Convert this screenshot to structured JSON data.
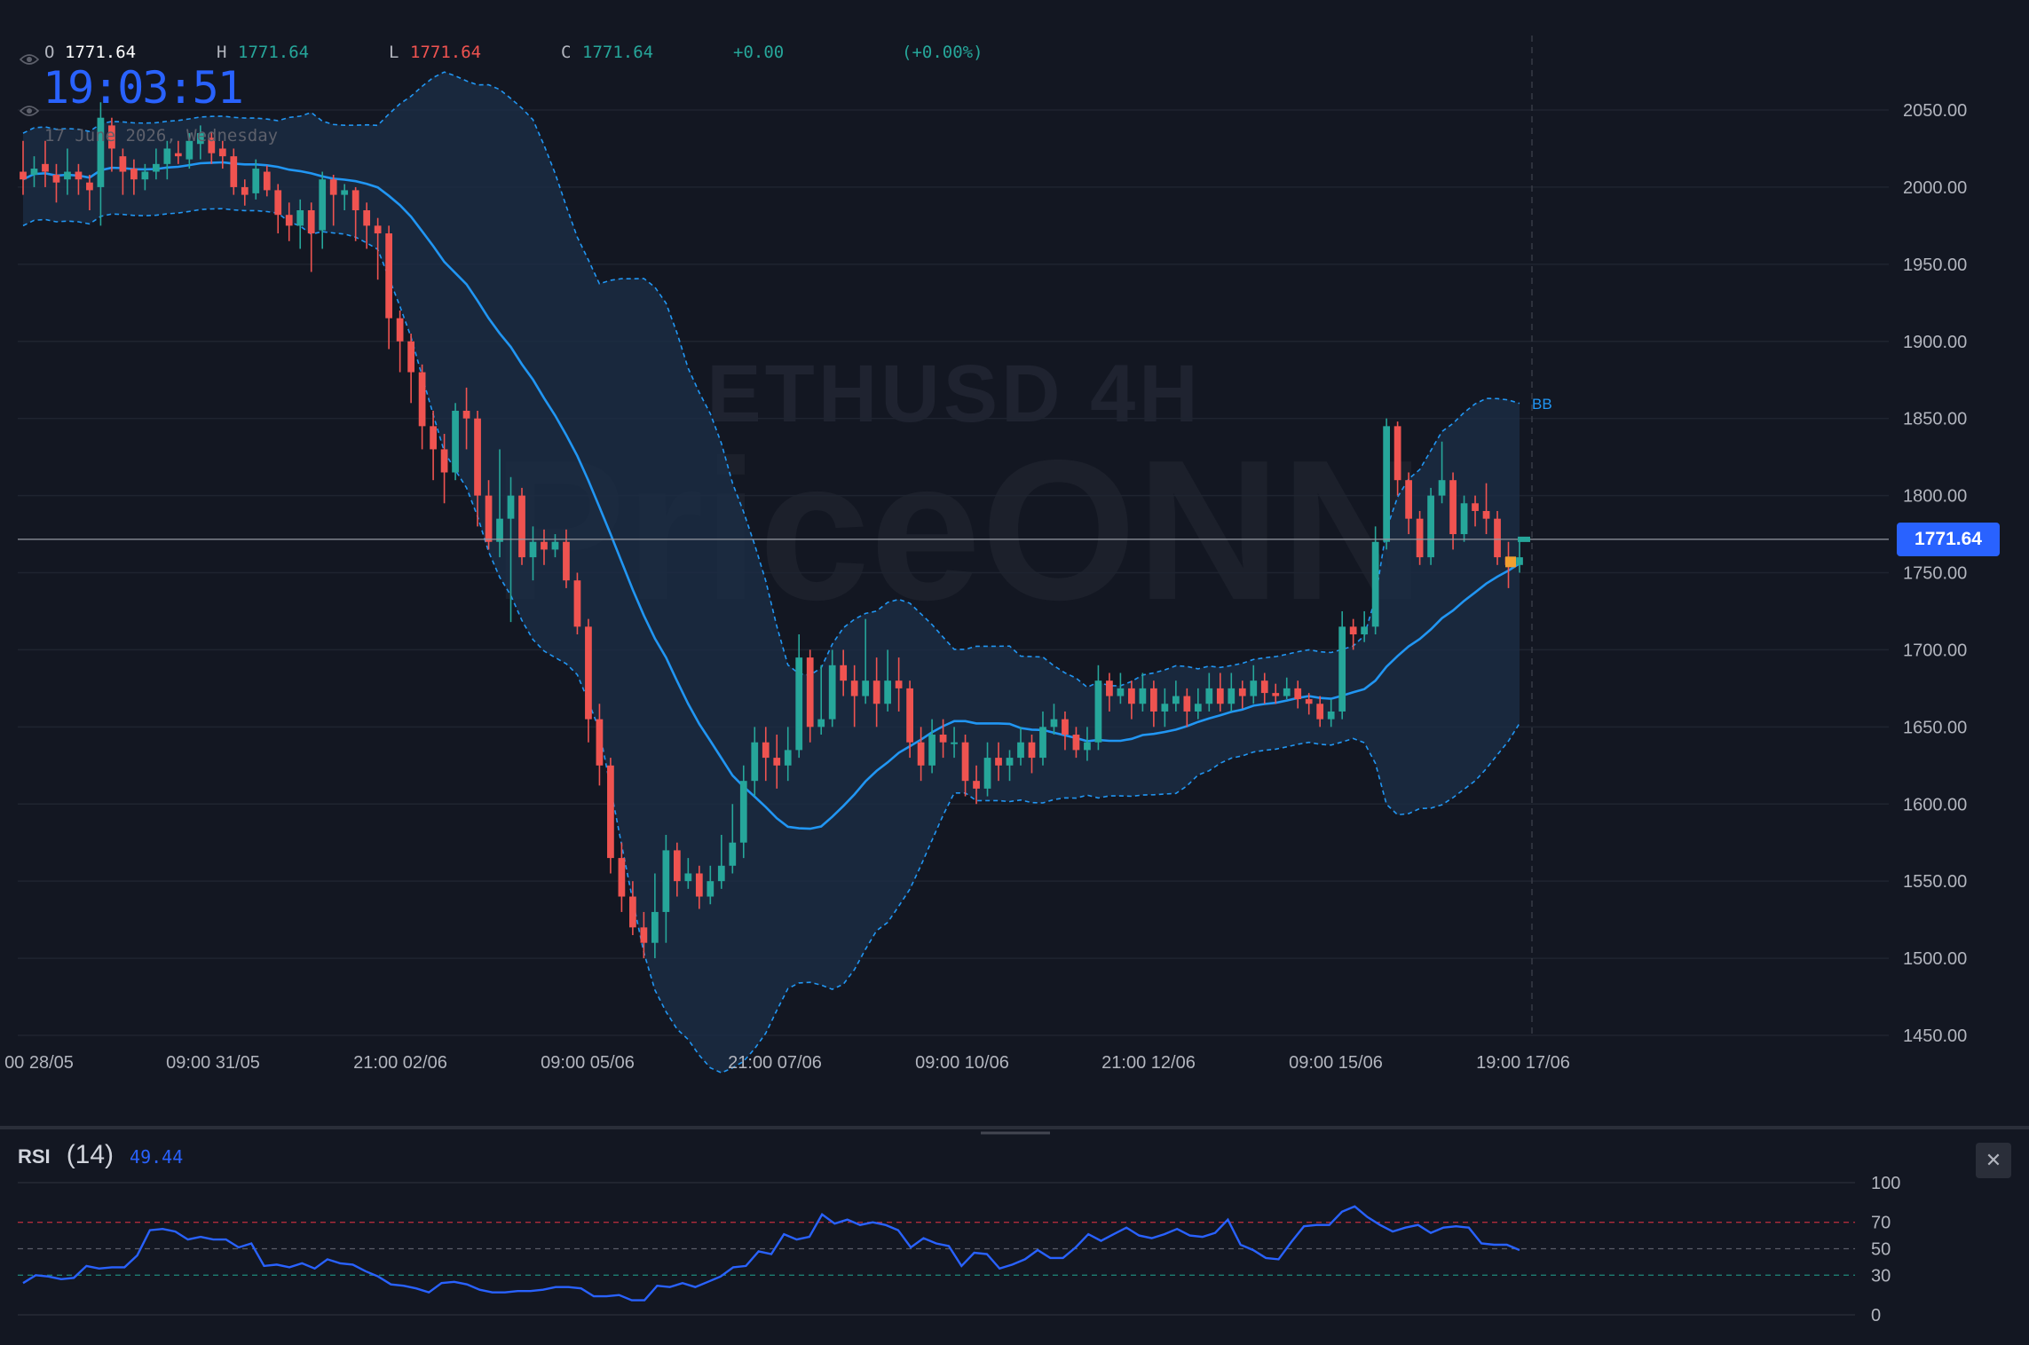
{
  "ohlc": {
    "o_label": "O",
    "o_value": "1771.64",
    "h_label": "H",
    "h_value": "1771.64",
    "l_label": "L",
    "l_value": "1771.64",
    "c_label": "C",
    "c_value": "1771.64",
    "change": "+0.00",
    "change_pct": "(+0.00%)"
  },
  "clock": "19:03:51",
  "date": "17 June 2026, Wednesday",
  "watermark": {
    "line1": "ETHUSD 4H",
    "line2": "PriceONN"
  },
  "price_tag": "1771.64",
  "bb_label": "BB",
  "rsi": {
    "name": "RSI",
    "length": "(14)",
    "value": "49.44",
    "close_icon": "close-icon"
  },
  "colors": {
    "up": "#26a69a",
    "down": "#ef5350",
    "basis": "#2196f3",
    "rsi": "#2962ff",
    "band_fill": "#1b2d45",
    "background": "#131722"
  },
  "chart_data": {
    "type": "candlestick",
    "symbol": "ETHUSD",
    "timeframe": "4H",
    "x_tick_labels": [
      "00 28/05",
      "09:00 31/05",
      "21:00 02/06",
      "09:00 05/06",
      "21:00 07/06",
      "09:00 10/06",
      "21:00 12/06",
      "09:00 15/06",
      "19:00 17/06"
    ],
    "y_tick_labels": [
      "2050.00",
      "2000.00",
      "1950.00",
      "1900.00",
      "1850.00",
      "1800.00",
      "1750.00",
      "1700.00",
      "1650.00",
      "1600.00",
      "1550.00",
      "1500.00",
      "1450.00"
    ],
    "y_range": [
      1450,
      2050
    ],
    "last_price": 1771.64,
    "candles": [
      [
        2010,
        2005,
        2030,
        1995
      ],
      [
        2008,
        2012,
        2020,
        2000
      ],
      [
        2015,
        2010,
        2030,
        2000
      ],
      [
        2008,
        2003,
        2015,
        1990
      ],
      [
        2005,
        2010,
        2025,
        1995
      ],
      [
        2010,
        2005,
        2015,
        1995
      ],
      [
        2003,
        1998,
        2008,
        1985
      ],
      [
        2000,
        2045,
        2055,
        1975
      ],
      [
        2040,
        2025,
        2045,
        2010
      ],
      [
        2020,
        2010,
        2025,
        1995
      ],
      [
        2012,
        2005,
        2018,
        1995
      ],
      [
        2005,
        2010,
        2015,
        1998
      ],
      [
        2010,
        2015,
        2025,
        2005
      ],
      [
        2015,
        2025,
        2030,
        2005
      ],
      [
        2022,
        2020,
        2030,
        2015
      ],
      [
        2018,
        2030,
        2035,
        2012
      ],
      [
        2028,
        2035,
        2040,
        2018
      ],
      [
        2032,
        2022,
        2036,
        2015
      ],
      [
        2025,
        2020,
        2030,
        2012
      ],
      [
        2020,
        2000,
        2025,
        1995
      ],
      [
        2000,
        1995,
        2005,
        1988
      ],
      [
        1996,
        2012,
        2018,
        1992
      ],
      [
        2010,
        1998,
        2014,
        1994
      ],
      [
        1998,
        1982,
        2002,
        1970
      ],
      [
        1982,
        1975,
        1990,
        1965
      ],
      [
        1975,
        1985,
        1992,
        1960
      ],
      [
        1985,
        1970,
        1990,
        1945
      ],
      [
        1972,
        2005,
        2010,
        1960
      ],
      [
        2005,
        1995,
        2008,
        1975
      ],
      [
        1995,
        1998,
        2002,
        1985
      ],
      [
        1998,
        1985,
        2000,
        1965
      ],
      [
        1985,
        1975,
        1990,
        1960
      ],
      [
        1975,
        1970,
        1980,
        1940
      ],
      [
        1970,
        1915,
        1975,
        1895
      ],
      [
        1915,
        1900,
        1920,
        1880
      ],
      [
        1900,
        1880,
        1905,
        1860
      ],
      [
        1880,
        1845,
        1885,
        1830
      ],
      [
        1845,
        1830,
        1855,
        1810
      ],
      [
        1830,
        1815,
        1840,
        1795
      ],
      [
        1815,
        1855,
        1860,
        1810
      ],
      [
        1855,
        1850,
        1870,
        1830
      ],
      [
        1850,
        1800,
        1855,
        1780
      ],
      [
        1800,
        1770,
        1810,
        1765
      ],
      [
        1770,
        1785,
        1830,
        1760
      ],
      [
        1785,
        1800,
        1812,
        1718
      ],
      [
        1800,
        1760,
        1805,
        1755
      ],
      [
        1760,
        1770,
        1780,
        1745
      ],
      [
        1770,
        1765,
        1778,
        1755
      ],
      [
        1765,
        1770,
        1775,
        1760
      ],
      [
        1770,
        1745,
        1778,
        1740
      ],
      [
        1745,
        1715,
        1750,
        1710
      ],
      [
        1715,
        1655,
        1720,
        1640
      ],
      [
        1655,
        1625,
        1665,
        1612
      ],
      [
        1625,
        1565,
        1630,
        1555
      ],
      [
        1565,
        1540,
        1575,
        1530
      ],
      [
        1540,
        1520,
        1550,
        1515
      ],
      [
        1520,
        1510,
        1530,
        1500
      ],
      [
        1510,
        1530,
        1555,
        1500
      ],
      [
        1530,
        1570,
        1580,
        1510
      ],
      [
        1570,
        1550,
        1575,
        1540
      ],
      [
        1550,
        1555,
        1565,
        1545
      ],
      [
        1555,
        1540,
        1560,
        1532
      ],
      [
        1540,
        1550,
        1560,
        1535
      ],
      [
        1550,
        1560,
        1580,
        1545
      ],
      [
        1560,
        1575,
        1600,
        1555
      ],
      [
        1575,
        1615,
        1625,
        1565
      ],
      [
        1615,
        1640,
        1650,
        1605
      ],
      [
        1640,
        1630,
        1650,
        1615
      ],
      [
        1630,
        1625,
        1645,
        1610
      ],
      [
        1625,
        1635,
        1650,
        1615
      ],
      [
        1635,
        1695,
        1710,
        1630
      ],
      [
        1695,
        1650,
        1700,
        1640
      ],
      [
        1650,
        1655,
        1690,
        1645
      ],
      [
        1655,
        1690,
        1700,
        1650
      ],
      [
        1690,
        1680,
        1700,
        1670
      ],
      [
        1680,
        1670,
        1690,
        1650
      ],
      [
        1670,
        1680,
        1720,
        1665
      ],
      [
        1680,
        1665,
        1695,
        1650
      ],
      [
        1665,
        1680,
        1700,
        1660
      ],
      [
        1680,
        1675,
        1695,
        1660
      ],
      [
        1675,
        1640,
        1680,
        1630
      ],
      [
        1640,
        1625,
        1650,
        1615
      ],
      [
        1625,
        1645,
        1655,
        1620
      ],
      [
        1645,
        1640,
        1655,
        1630
      ],
      [
        1640,
        1640,
        1650,
        1630
      ],
      [
        1640,
        1615,
        1645,
        1605
      ],
      [
        1615,
        1610,
        1625,
        1600
      ],
      [
        1610,
        1630,
        1640,
        1605
      ],
      [
        1630,
        1625,
        1640,
        1615
      ],
      [
        1625,
        1630,
        1635,
        1615
      ],
      [
        1630,
        1640,
        1650,
        1625
      ],
      [
        1640,
        1630,
        1645,
        1620
      ],
      [
        1630,
        1650,
        1660,
        1625
      ],
      [
        1650,
        1655,
        1665,
        1645
      ],
      [
        1655,
        1645,
        1660,
        1635
      ],
      [
        1645,
        1635,
        1650,
        1630
      ],
      [
        1635,
        1640,
        1650,
        1628
      ],
      [
        1640,
        1680,
        1690,
        1635
      ],
      [
        1680,
        1670,
        1685,
        1660
      ],
      [
        1670,
        1675,
        1685,
        1665
      ],
      [
        1675,
        1665,
        1680,
        1655
      ],
      [
        1665,
        1675,
        1685,
        1660
      ],
      [
        1675,
        1660,
        1680,
        1650
      ],
      [
        1660,
        1665,
        1675,
        1650
      ],
      [
        1665,
        1670,
        1680,
        1660
      ],
      [
        1670,
        1660,
        1675,
        1650
      ],
      [
        1660,
        1665,
        1675,
        1655
      ],
      [
        1665,
        1675,
        1685,
        1660
      ],
      [
        1675,
        1665,
        1685,
        1660
      ],
      [
        1665,
        1675,
        1685,
        1660
      ],
      [
        1675,
        1670,
        1680,
        1662
      ],
      [
        1670,
        1680,
        1690,
        1665
      ],
      [
        1680,
        1672,
        1685,
        1665
      ],
      [
        1672,
        1670,
        1678,
        1665
      ],
      [
        1670,
        1675,
        1682,
        1668
      ],
      [
        1675,
        1668,
        1680,
        1662
      ],
      [
        1668,
        1665,
        1672,
        1658
      ],
      [
        1665,
        1655,
        1670,
        1650
      ],
      [
        1655,
        1660,
        1668,
        1650
      ],
      [
        1660,
        1715,
        1725,
        1655
      ],
      [
        1715,
        1710,
        1720,
        1700
      ],
      [
        1710,
        1715,
        1725,
        1705
      ],
      [
        1715,
        1770,
        1780,
        1710
      ],
      [
        1770,
        1845,
        1850,
        1765
      ],
      [
        1845,
        1810,
        1848,
        1800
      ],
      [
        1810,
        1785,
        1815,
        1775
      ],
      [
        1785,
        1760,
        1790,
        1755
      ],
      [
        1760,
        1800,
        1805,
        1755
      ],
      [
        1800,
        1810,
        1835,
        1795
      ],
      [
        1810,
        1775,
        1815,
        1765
      ],
      [
        1775,
        1795,
        1800,
        1770
      ],
      [
        1795,
        1790,
        1800,
        1780
      ],
      [
        1790,
        1785,
        1808,
        1775
      ],
      [
        1785,
        1760,
        1790,
        1755
      ],
      [
        1760,
        1755,
        1770,
        1740
      ],
      [
        1755,
        1760,
        1772,
        1750
      ]
    ],
    "bollinger": {
      "period": 20,
      "label": "BB"
    },
    "rsi": {
      "period": 14,
      "last": 49.44,
      "levels": [
        70,
        50,
        30
      ],
      "y_tick_labels": [
        "100",
        "70",
        "50",
        "30",
        "0"
      ],
      "values": [
        24,
        30,
        29,
        27,
        28,
        37,
        35,
        36,
        36,
        45,
        64,
        65,
        63,
        57,
        59,
        57,
        57,
        51,
        54,
        37,
        38,
        36,
        39,
        35,
        42,
        39,
        38,
        33,
        29,
        23,
        22,
        20,
        17,
        24,
        25,
        23,
        19,
        17,
        17,
        18,
        18,
        19,
        21,
        21,
        20,
        14,
        14,
        15,
        11,
        11,
        22,
        21,
        24,
        21,
        25,
        29,
        36,
        37,
        48,
        46,
        61,
        57,
        59,
        76,
        69,
        72,
        68,
        70,
        68,
        64,
        51,
        58,
        54,
        52,
        37,
        47,
        46,
        35,
        38,
        42,
        49,
        43,
        43,
        51,
        61,
        56,
        61,
        66,
        60,
        58,
        61,
        65,
        60,
        59,
        62,
        72,
        53,
        49,
        43,
        42,
        55,
        67,
        68,
        68,
        78,
        82,
        74,
        68,
        63,
        66,
        68,
        62,
        66,
        67,
        66,
        54,
        53,
        53,
        49
      ]
    }
  }
}
